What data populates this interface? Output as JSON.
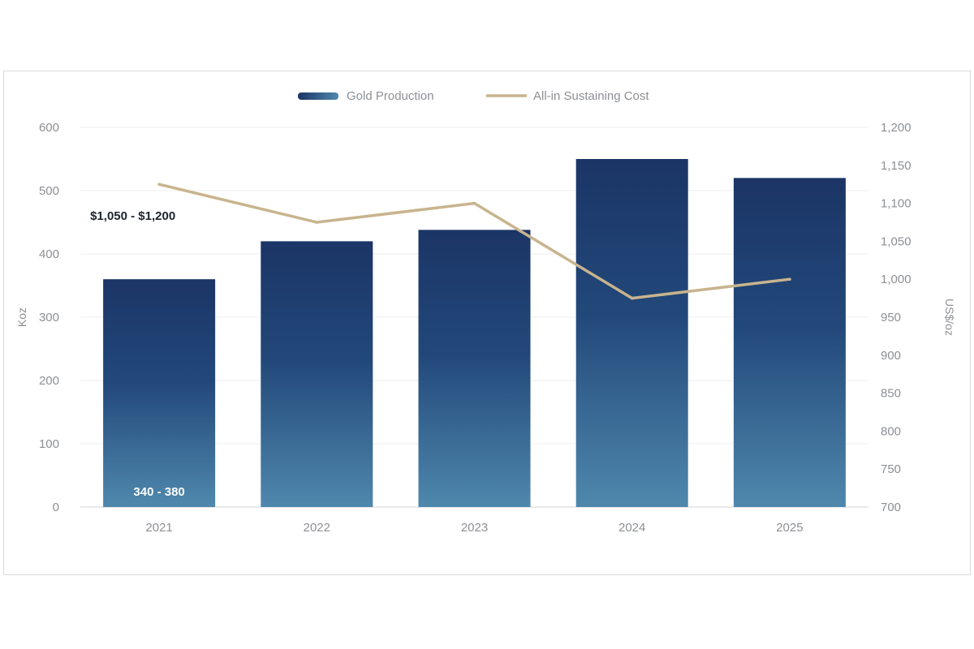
{
  "chart_data": {
    "type": "bar",
    "categories": [
      "2021",
      "2022",
      "2023",
      "2024",
      "2025"
    ],
    "series": [
      {
        "name": "Gold Production",
        "type": "bar",
        "axis": "left",
        "values": [
          360,
          420,
          438,
          550,
          520
        ],
        "color": "#1c3a6b"
      },
      {
        "name": "All-in Sustaining Cost",
        "type": "line",
        "axis": "right",
        "values": [
          1125,
          1075,
          1100,
          975,
          1000
        ],
        "color": "#c8b48e"
      }
    ],
    "y_left": {
      "label": "Koz",
      "range": [
        0,
        600
      ],
      "ticks": [
        "0",
        "100",
        "200",
        "300",
        "400",
        "500",
        "600"
      ]
    },
    "y_right": {
      "label": "US$/oz",
      "range": [
        700,
        1200
      ],
      "ticks": [
        "700",
        "750",
        "800",
        "850",
        "900",
        "950",
        "1,000",
        "1,050",
        "1,100",
        "1,150",
        "1,200"
      ]
    },
    "annotations": [
      {
        "text": "$1,050 - $1,200",
        "series": "All-in Sustaining Cost",
        "category": "2021"
      },
      {
        "text": "340 - 380",
        "series": "Gold Production",
        "category": "2021"
      }
    ],
    "legend_position": "top",
    "grid": true
  }
}
